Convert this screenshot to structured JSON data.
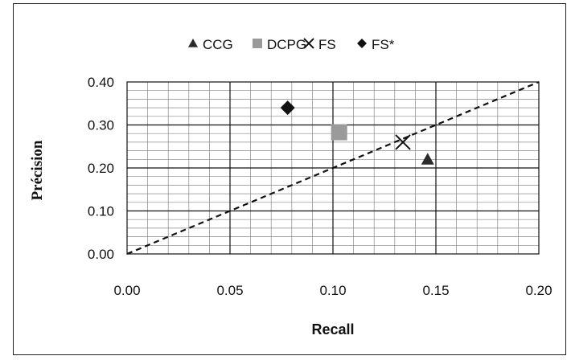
{
  "chart_data": {
    "type": "scatter",
    "title": "",
    "xlabel": "Recall",
    "ylabel": "Précision",
    "xlim": [
      0,
      0.2
    ],
    "ylim": [
      0,
      0.4
    ],
    "x_ticks": [
      "0.00",
      "0.05",
      "0.10",
      "0.15",
      "0.20"
    ],
    "y_ticks": [
      "0.00",
      "0.10",
      "0.20",
      "0.30",
      "0.40"
    ],
    "grid": true,
    "legend": "top",
    "series": [
      {
        "name": "CCG",
        "marker": "triangle",
        "color": "#2b2b2b",
        "points": [
          {
            "x": 0.146,
            "y": 0.22
          }
        ]
      },
      {
        "name": "DCPG",
        "marker": "square",
        "color": "#9a9a9a",
        "points": [
          {
            "x": 0.103,
            "y": 0.283
          }
        ]
      },
      {
        "name": "FS",
        "marker": "x",
        "color": "#111111",
        "points": [
          {
            "x": 0.134,
            "y": 0.26
          }
        ]
      },
      {
        "name": "FS*",
        "marker": "diamond",
        "color": "#111111",
        "points": [
          {
            "x": 0.078,
            "y": 0.34
          }
        ]
      }
    ],
    "reference_line": {
      "style": "dashed",
      "from": {
        "x": 0,
        "y": 0
      },
      "to": {
        "x": 0.2,
        "y": 0.4
      }
    }
  }
}
